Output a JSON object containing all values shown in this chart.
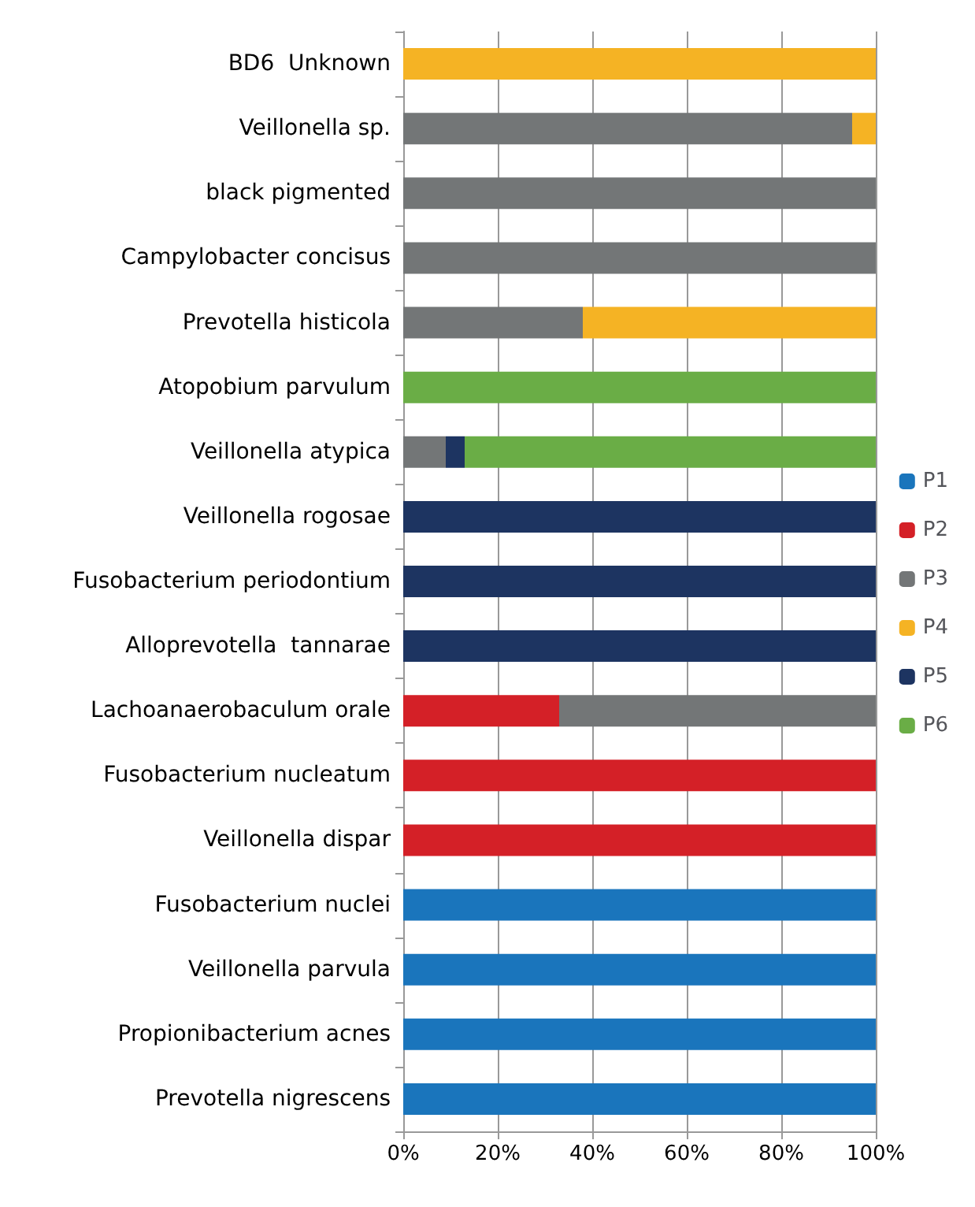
{
  "chart_data": {
    "type": "bar",
    "orientation": "horizontal",
    "stacked": true,
    "categories": [
      "BD6  Unknown",
      "Veillonella sp.",
      "black pigmented",
      "Campylobacter concisus",
      "Prevotella histicola",
      "Atopobium parvulum",
      "Veillonella atypica",
      "Veillonella rogosae",
      "Fusobacterium periodontium",
      "Alloprevotella  tannarae",
      "Lachoanaerobaculum orale",
      "Fusobacterium nucleatum",
      "Veillonella dispar",
      "Fusobacterium nuclei",
      "Veillonella parvula",
      "Propionibacterium acnes",
      "Prevotella nigrescens"
    ],
    "series": [
      {
        "name": "P1",
        "color": "#1a75bc",
        "values": [
          0,
          0,
          0,
          0,
          0,
          0,
          0,
          0,
          0,
          0,
          0,
          0,
          0,
          100,
          100,
          100,
          100
        ]
      },
      {
        "name": "P2",
        "color": "#d42027",
        "values": [
          0,
          0,
          0,
          0,
          0,
          0,
          0,
          0,
          0,
          0,
          33,
          100,
          100,
          0,
          0,
          0,
          0
        ]
      },
      {
        "name": "P3",
        "color": "#737677",
        "values": [
          0,
          95,
          100,
          100,
          38,
          0,
          9,
          0,
          0,
          0,
          67,
          0,
          0,
          0,
          0,
          0,
          0
        ]
      },
      {
        "name": "P4",
        "color": "#f5b324",
        "values": [
          100,
          5,
          0,
          0,
          62,
          0,
          0,
          0,
          0,
          0,
          0,
          0,
          0,
          0,
          0,
          0,
          0
        ]
      },
      {
        "name": "P5",
        "color": "#1d3461",
        "values": [
          0,
          0,
          0,
          0,
          0,
          0,
          4,
          100,
          100,
          100,
          0,
          0,
          0,
          0,
          0,
          0,
          0
        ]
      },
      {
        "name": "P6",
        "color": "#6aad46",
        "values": [
          0,
          0,
          0,
          0,
          0,
          100,
          87,
          0,
          0,
          0,
          0,
          0,
          0,
          0,
          0,
          0,
          0
        ]
      }
    ],
    "xlim": [
      0,
      100
    ],
    "xticks": [
      {
        "value": 0,
        "label": "0%"
      },
      {
        "value": 20,
        "label": "20%"
      },
      {
        "value": 40,
        "label": "40%"
      },
      {
        "value": 60,
        "label": "60%"
      },
      {
        "value": 80,
        "label": "80%"
      },
      {
        "value": 100,
        "label": "100%"
      }
    ],
    "grid": "x",
    "legend": "right"
  }
}
